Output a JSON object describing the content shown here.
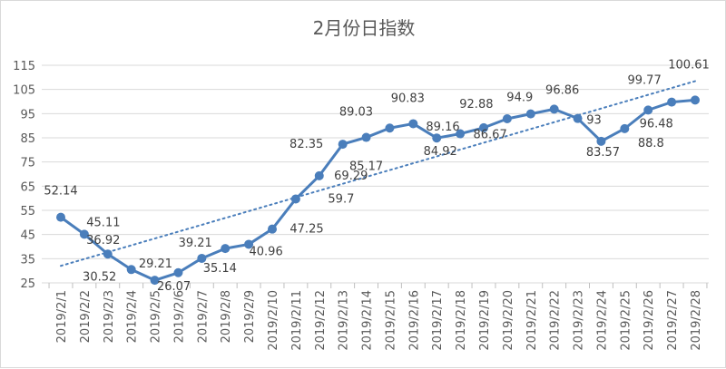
{
  "chart_data": {
    "type": "line",
    "title": "2月份日指数",
    "xlabel": "",
    "ylabel": "",
    "ylim": [
      25,
      115
    ],
    "yticks": [
      25,
      35,
      45,
      55,
      65,
      75,
      85,
      95,
      105,
      115
    ],
    "grid": true,
    "legend": "none",
    "categories": [
      "2019/2/1",
      "2019/2/2",
      "2019/2/3",
      "2019/2/4",
      "2019/2/5",
      "2019/2/6",
      "2019/2/7",
      "2019/2/8",
      "2019/2/9",
      "2019/2/10",
      "2019/2/11",
      "2019/2/12",
      "2019/2/13",
      "2019/2/14",
      "2019/2/15",
      "2019/2/16",
      "2019/2/17",
      "2019/2/18",
      "2019/2/19",
      "2019/2/20",
      "2019/2/21",
      "2019/2/22",
      "2019/2/23",
      "2019/2/24",
      "2019/2/25",
      "2019/2/26",
      "2019/2/27",
      "2019/2/28"
    ],
    "series": [
      {
        "name": "日指数",
        "color": "#4a7ebb",
        "values": [
          52.14,
          45.11,
          36.92,
          30.52,
          26.07,
          29.21,
          35.14,
          39.21,
          40.96,
          47.25,
          59.7,
          69.29,
          82.35,
          85.17,
          89.03,
          90.83,
          84.92,
          86.67,
          89.16,
          92.88,
          94.9,
          96.86,
          93,
          83.57,
          88.8,
          96.48,
          99.77,
          100.61
        ]
      }
    ],
    "trendline": {
      "type": "linear",
      "style": "dotted",
      "color": "#4a7ebb"
    }
  }
}
